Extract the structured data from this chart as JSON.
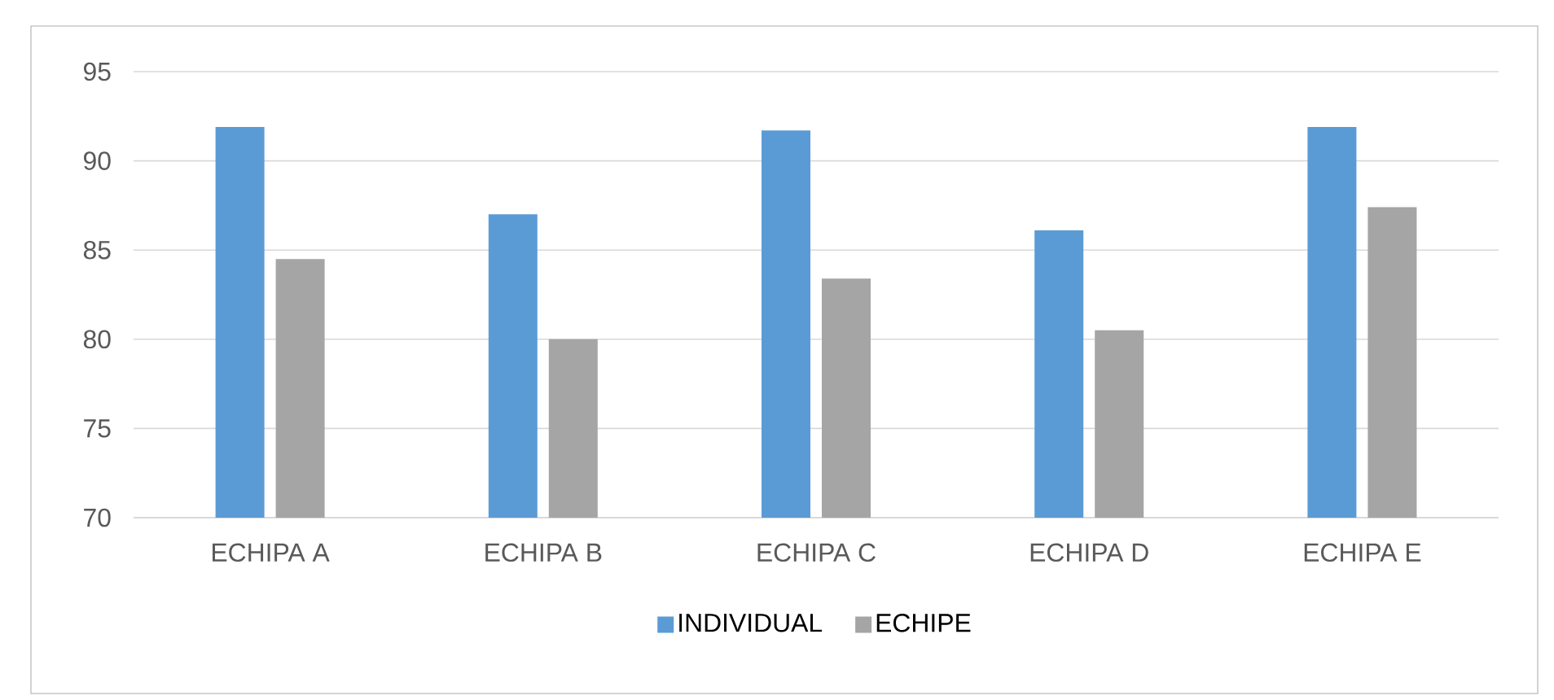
{
  "chart_data": {
    "type": "bar",
    "categories": [
      "ECHIPA A",
      "ECHIPA B",
      "ECHIPA C",
      "ECHIPA D",
      "ECHIPA E"
    ],
    "series": [
      {
        "name": "INDIVIDUAL",
        "color": "#5b9bd5",
        "values": [
          91.9,
          87.0,
          91.7,
          86.1,
          91.9
        ]
      },
      {
        "name": "ECHIPE",
        "color": "#a5a5a5",
        "values": [
          84.5,
          80.0,
          83.4,
          80.5,
          87.4
        ]
      }
    ],
    "ylim": [
      70,
      95
    ],
    "yticks": [
      70,
      75,
      80,
      85,
      90,
      95
    ],
    "grid": "y",
    "legend": "bottom"
  }
}
